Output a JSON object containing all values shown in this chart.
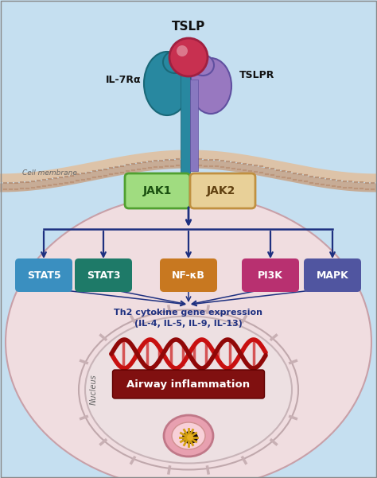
{
  "extracellular_color": "#c5dff0",
  "cell_bg_color": "#f0dde0",
  "nucleus_fill": "#ede0e2",
  "nucleus_border": "#c8b4b8",
  "membrane_top_color": "#e8c8b0",
  "membrane_bot_color": "#d4a888",
  "tslp_label": "TSLP",
  "il7ra_label": "IL-7Rα",
  "tslpr_label": "TSLPR",
  "jak1_label": "JAK1",
  "jak2_label": "JAK2",
  "signaling_nodes": [
    "STAT5",
    "STAT3",
    "NF-κB",
    "PI3K",
    "MAPK"
  ],
  "signaling_colors": [
    "#3a8fc0",
    "#1e7a68",
    "#c87820",
    "#b83070",
    "#5055a0"
  ],
  "th2_text_line1": "Th2 cytokine gene expression",
  "th2_text_line2": "(IL-4, IL-5, IL-9, IL-13)",
  "airway_text": "Airway inflammation",
  "cell_membrane_label": "Cell membrane",
  "nucleus_label": "Nucleus",
  "arrow_color": "#1e3080",
  "jak1_color": "#a0dc80",
  "jak1_border": "#50a030",
  "jak2_color": "#e8d098",
  "jak2_border": "#c09040",
  "il7ra_color": "#2888a0",
  "tslpr_color": "#9878c0",
  "tslp_ball_color": "#c83050",
  "stem_color": "#2888a0",
  "stem_right_color": "#8878c0",
  "dna_red": "#c81010",
  "dna_dark": "#900808",
  "inflammation_color": "#801010",
  "vessel_outer": "#e8a0b0",
  "vessel_inner": "#f8d0d8",
  "vessel_dark": "#200000"
}
